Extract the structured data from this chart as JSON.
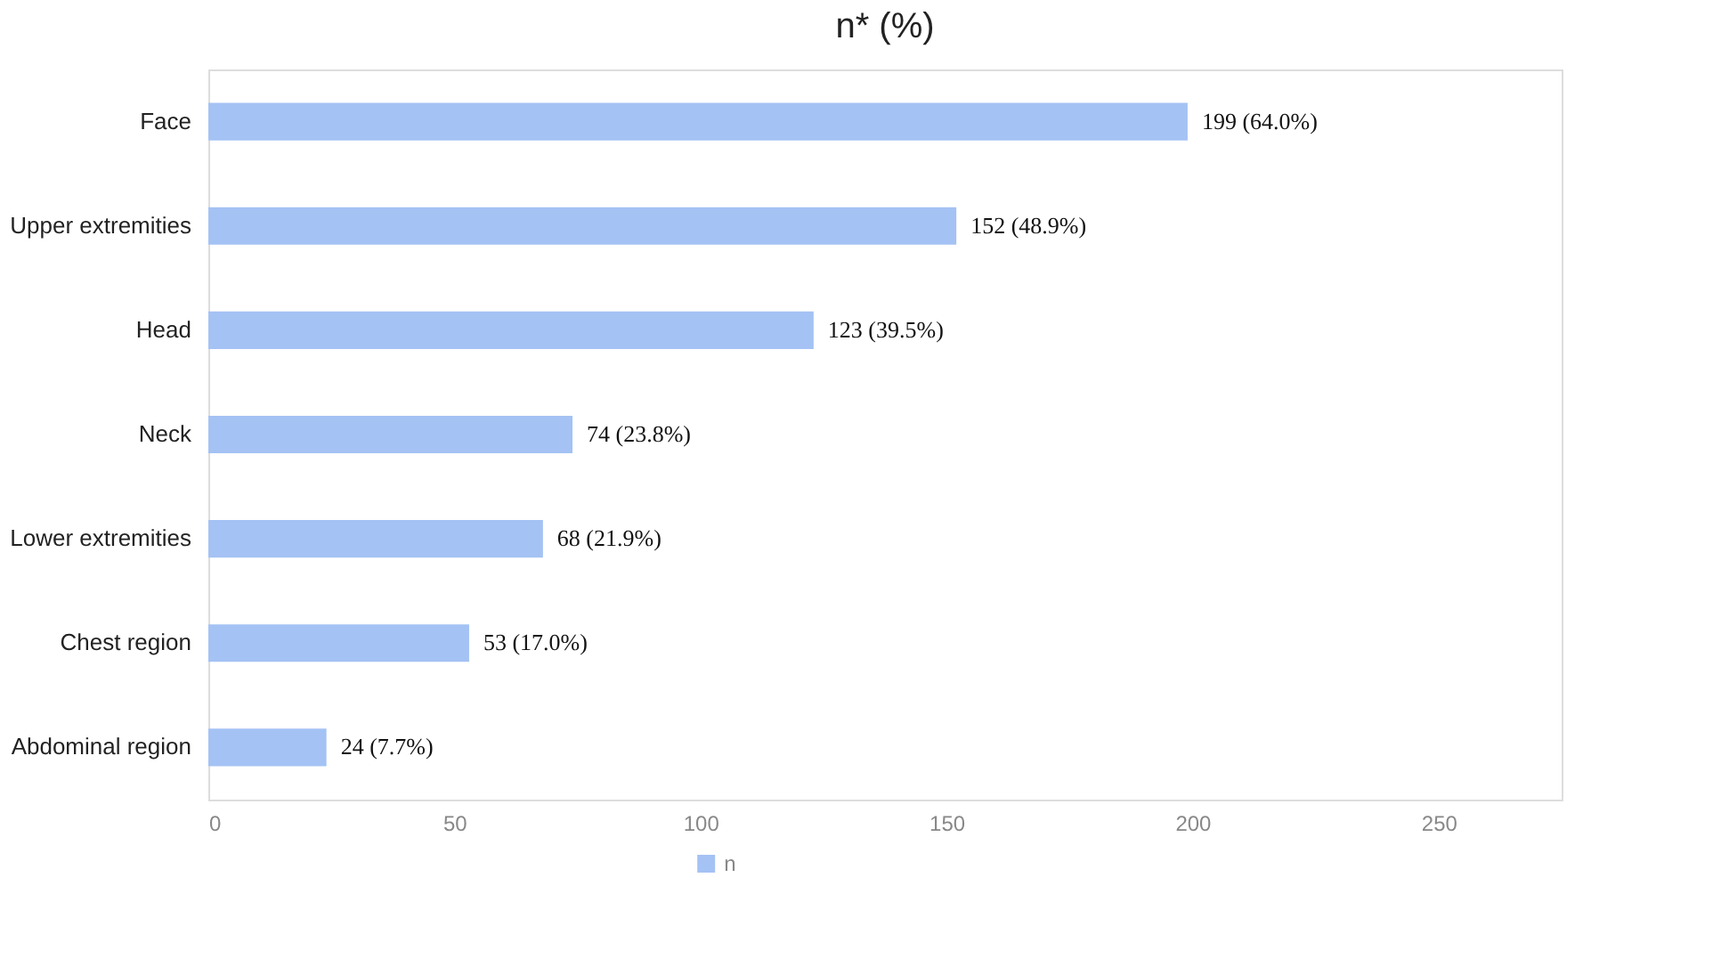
{
  "chart_data": {
    "type": "bar",
    "orientation": "horizontal",
    "title": "n* (%)",
    "categories": [
      "Face",
      "Upper extremities",
      "Head",
      "Neck",
      "Lower extremities",
      "Chest region",
      "Abdominal region"
    ],
    "series": [
      {
        "name": "n",
        "color": "#a4c2f4",
        "values": [
          199,
          152,
          123,
          74,
          68,
          53,
          24
        ],
        "value_labels": [
          "199 (64.0%)",
          "152 (48.9%)",
          "123 (39.5%)",
          "74 (23.8%)",
          "68 (21.9%)",
          "53 (17.0%)",
          "24 (7.7%)"
        ]
      }
    ],
    "xlim": [
      0,
      275
    ],
    "xticks": [
      0,
      50,
      100,
      150,
      200,
      250
    ],
    "grid": false,
    "legend": "bottom"
  }
}
